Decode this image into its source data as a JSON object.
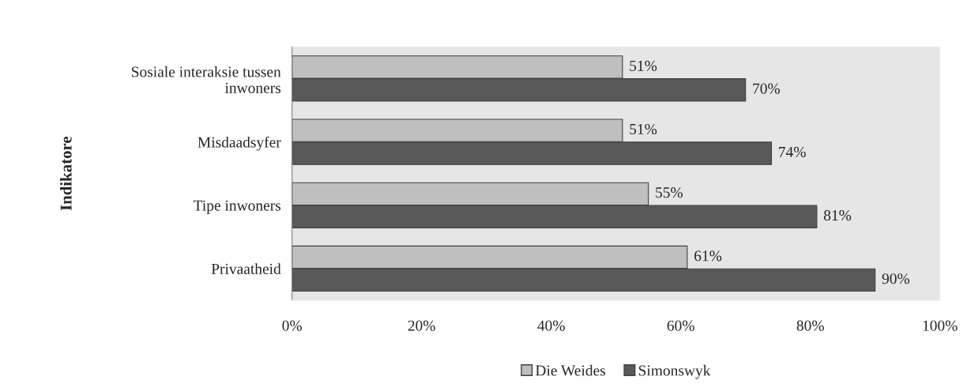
{
  "chart_data": {
    "type": "bar",
    "orientation": "horizontal",
    "ylabel": "Indikatore",
    "categories": [
      "Sosiale interaksie tussen\ninwoners",
      "Misdaadsyfer",
      "Tipe inwoners",
      "Privaatheid"
    ],
    "series": [
      {
        "name": "Die Weides",
        "color": "#bfbfbf",
        "values": [
          51,
          51,
          55,
          61
        ],
        "value_labels": [
          "51%",
          "51%",
          "55%",
          "61%"
        ]
      },
      {
        "name": "Simonswyk",
        "color": "#595959",
        "values": [
          70,
          74,
          81,
          90
        ],
        "value_labels": [
          "70%",
          "74%",
          "81%",
          "90%"
        ]
      }
    ],
    "xlim": [
      0,
      100
    ],
    "xticks": [
      {
        "value": 0,
        "label": "0%"
      },
      {
        "value": 20,
        "label": "20%"
      },
      {
        "value": 40,
        "label": "40%"
      },
      {
        "value": 60,
        "label": "60%"
      },
      {
        "value": 80,
        "label": "80%"
      },
      {
        "value": 100,
        "label": "100%"
      }
    ],
    "grid": false,
    "legend": "bottom"
  }
}
